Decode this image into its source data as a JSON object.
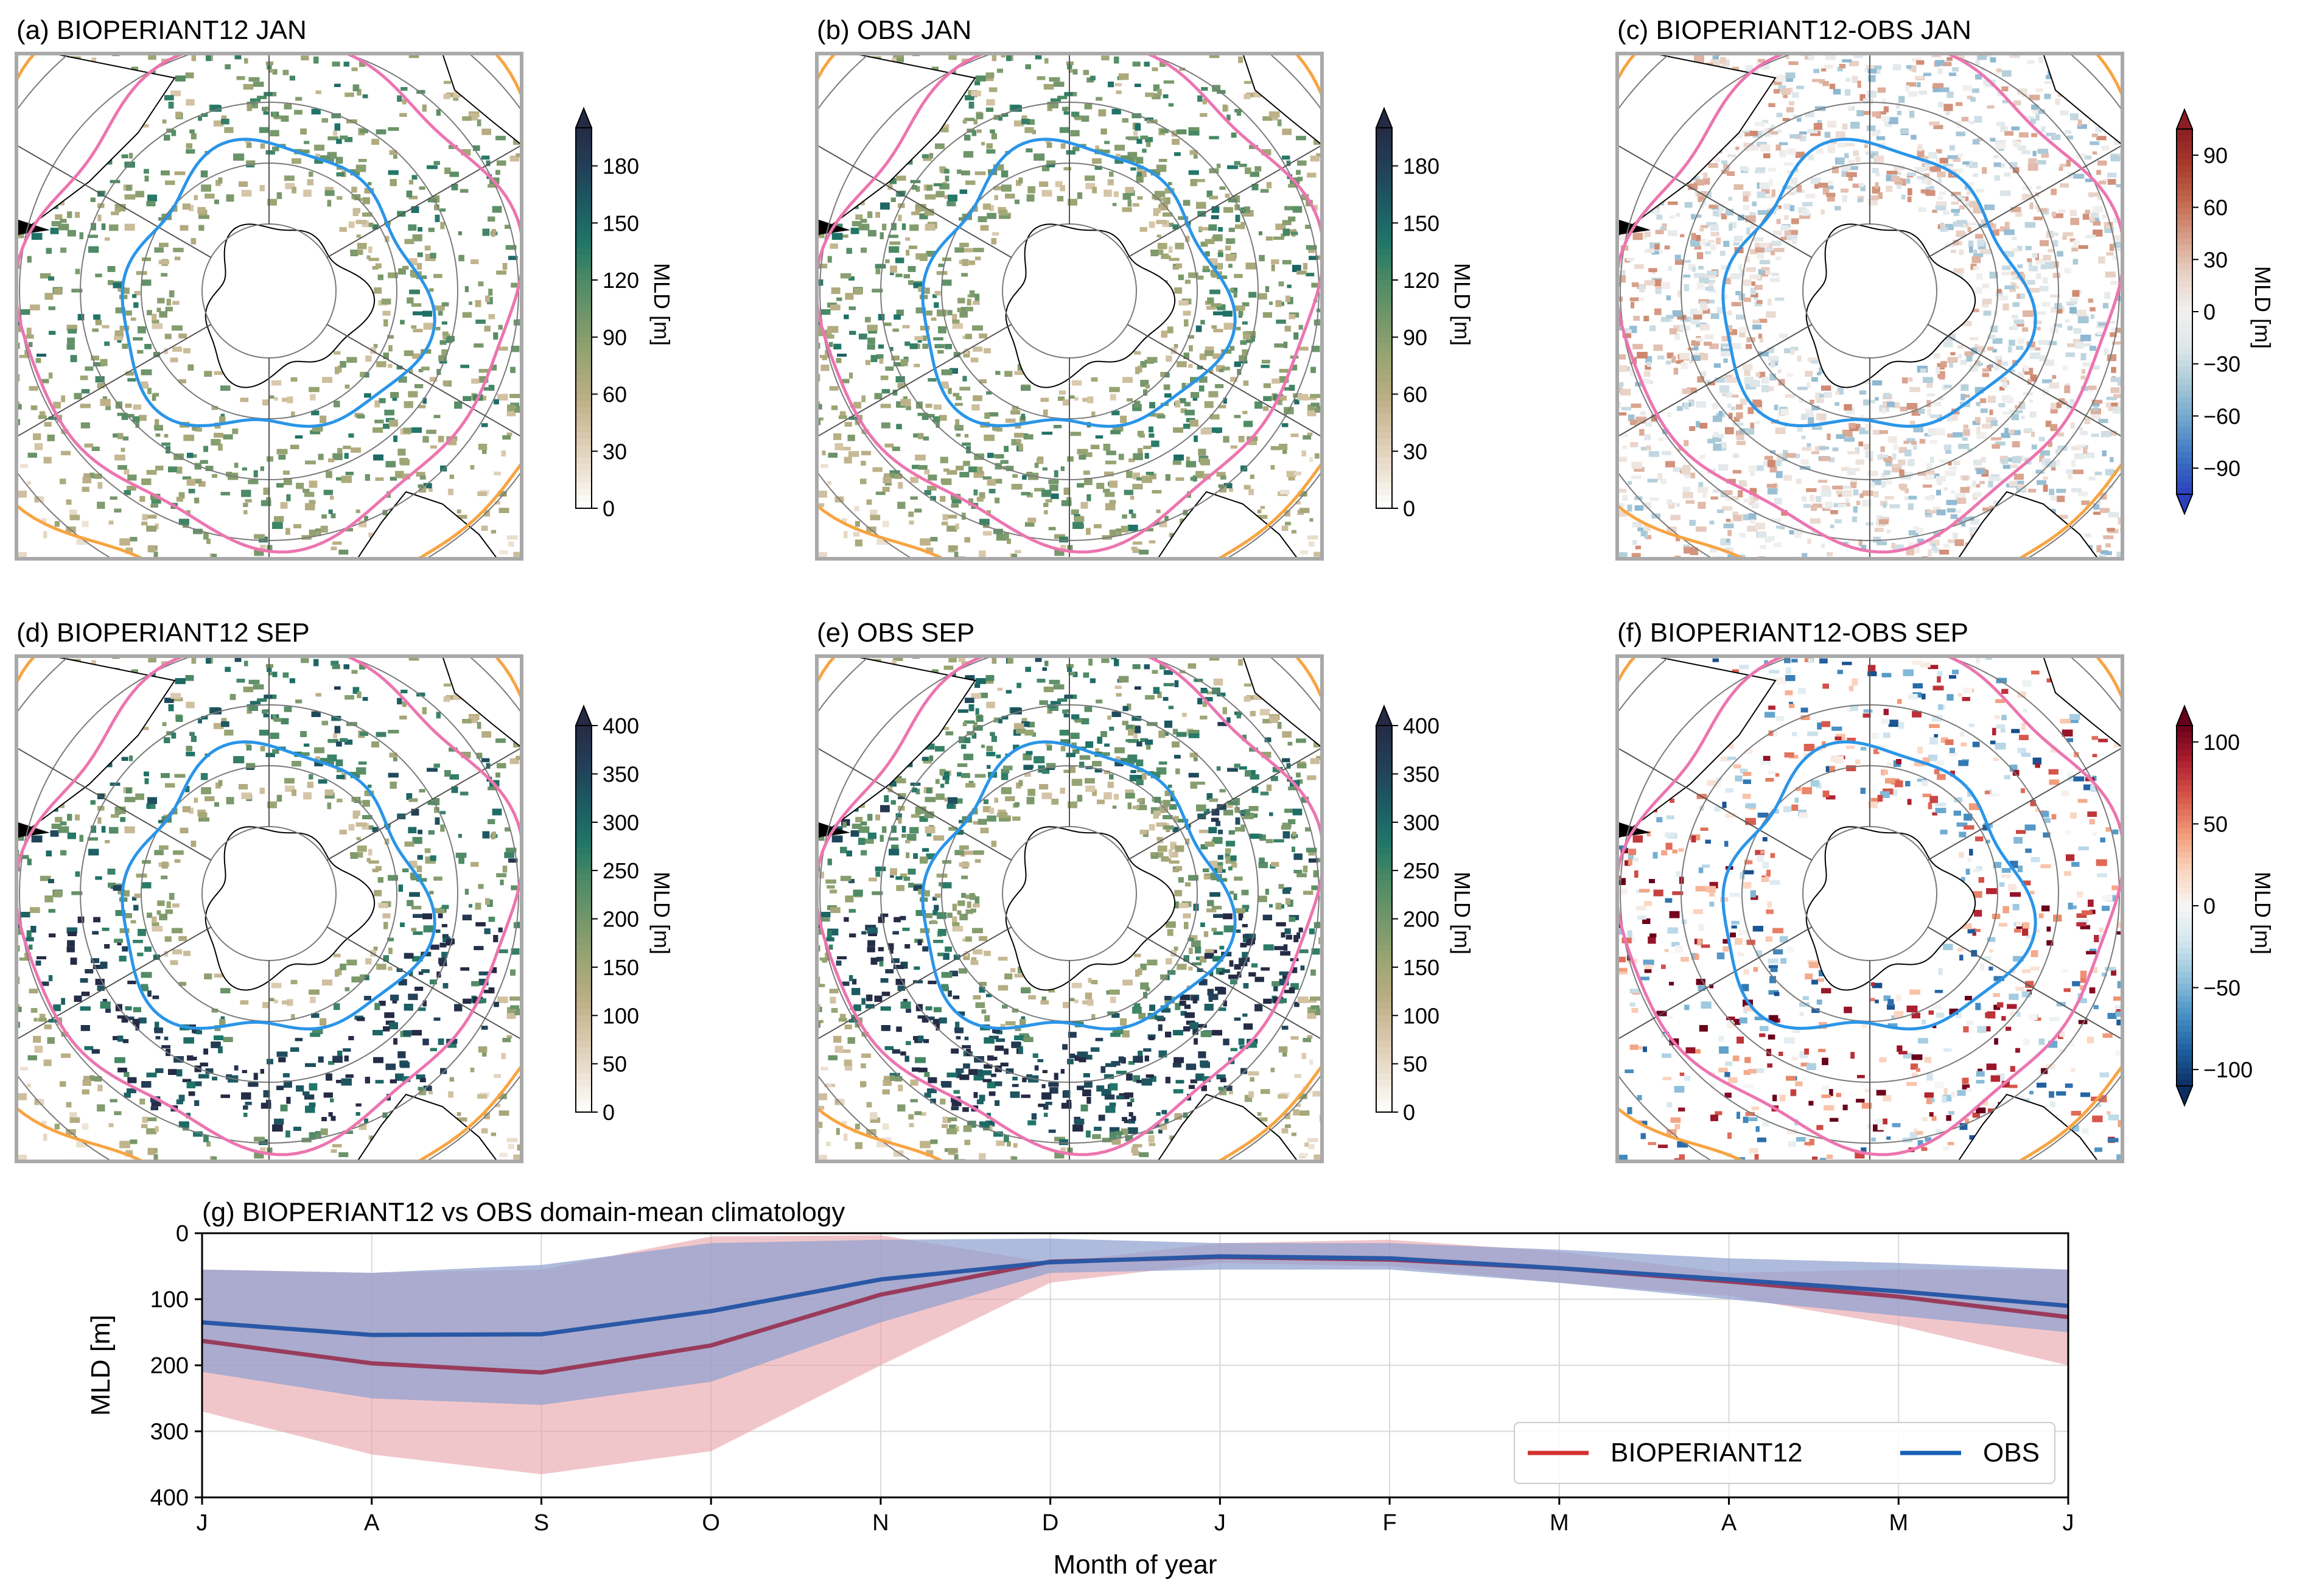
{
  "panels": [
    {
      "id": "a",
      "title": "(a) BIOPERIANT12 JAN",
      "kind": "model",
      "month": "jan"
    },
    {
      "id": "b",
      "title": "(b) OBS JAN",
      "kind": "obs",
      "month": "jan"
    },
    {
      "id": "c",
      "title": "(c) BIOPERIANT12-OBS JAN",
      "kind": "diff",
      "month": "jan"
    },
    {
      "id": "d",
      "title": "(d) BIOPERIANT12 SEP",
      "kind": "model",
      "month": "sep"
    },
    {
      "id": "e",
      "title": "(e) OBS SEP",
      "kind": "obs",
      "month": "sep"
    },
    {
      "id": "f",
      "title": "(f) BIOPERIANT12-OBS SEP",
      "kind": "diff",
      "month": "sep"
    }
  ],
  "colorbars": [
    {
      "id": "a",
      "label": "MLD [m]",
      "ticks": [
        "0",
        "30",
        "60",
        "90",
        "120",
        "150",
        "180"
      ],
      "vmin": 0,
      "vmax": 200,
      "colors": [
        "#ffffff",
        "#ece1d2",
        "#d6c5a8",
        "#b9ad83",
        "#98a472",
        "#73966a",
        "#4c8a65",
        "#1f7568",
        "#1d5a63",
        "#223f57",
        "#252b45"
      ],
      "extend": "max"
    },
    {
      "id": "b",
      "label": "MLD [m]",
      "ticks": [
        "0",
        "30",
        "60",
        "90",
        "120",
        "150",
        "180"
      ],
      "vmin": 0,
      "vmax": 200,
      "colors": [
        "#ffffff",
        "#ece1d2",
        "#d6c5a8",
        "#b9ad83",
        "#98a472",
        "#73966a",
        "#4c8a65",
        "#1f7568",
        "#1d5a63",
        "#223f57",
        "#252b45"
      ],
      "extend": "max"
    },
    {
      "id": "c",
      "label": "MLD [m]",
      "ticks": [
        "90",
        "60",
        "30",
        "0",
        "−30",
        "−60",
        "−90"
      ],
      "vmin": -105,
      "vmax": 105,
      "colors": [
        "#2c3fbf",
        "#3b73c1",
        "#6ea4cc",
        "#a7c8d6",
        "#dde6ea",
        "#f2f0ee",
        "#e9d3c8",
        "#d8a08a",
        "#c2694f",
        "#a73c2d",
        "#8a1d22"
      ],
      "extend": "both"
    },
    {
      "id": "d",
      "label": "MLD [m]",
      "ticks": [
        "0",
        "50",
        "100",
        "150",
        "200",
        "250",
        "300",
        "350",
        "400"
      ],
      "vmin": 0,
      "vmax": 400,
      "colors": [
        "#ffffff",
        "#ece1d2",
        "#d6c5a8",
        "#b9ad83",
        "#98a472",
        "#73966a",
        "#4c8a65",
        "#1f7568",
        "#1d5a63",
        "#223f57",
        "#252b45"
      ],
      "extend": "max"
    },
    {
      "id": "e",
      "label": "MLD [m]",
      "ticks": [
        "0",
        "50",
        "100",
        "150",
        "200",
        "250",
        "300",
        "350",
        "400"
      ],
      "vmin": 0,
      "vmax": 400,
      "colors": [
        "#ffffff",
        "#ece1d2",
        "#d6c5a8",
        "#b9ad83",
        "#98a472",
        "#73966a",
        "#4c8a65",
        "#1f7568",
        "#1d5a63",
        "#223f57",
        "#252b45"
      ],
      "extend": "max"
    },
    {
      "id": "f",
      "label": "MLD [m]",
      "ticks": [
        "100",
        "50",
        "0",
        "−50",
        "−100"
      ],
      "vmin": -110,
      "vmax": 110,
      "colors": [
        "#0b2e62",
        "#1f5fa0",
        "#4a92c4",
        "#93c3dc",
        "#d3e6ef",
        "#f7f6f5",
        "#fbd3bd",
        "#f19a78",
        "#d7574a",
        "#ae1f30",
        "#68001a"
      ],
      "extend": "both"
    }
  ],
  "colors": {
    "model_line": "#993b5b",
    "obs_line": "#2a58a6",
    "model_band": "#e7a0a9",
    "obs_band": "#8fa1cf",
    "legend_model": "#d2312f",
    "legend_obs": "#1760b5",
    "front_outer": "#f8a442",
    "front_mid": "#ec75b0",
    "front_inner": "#2a95e8"
  },
  "chart_data": [
    {
      "type": "heatmap",
      "title": "(a) BIOPERIANT12 JAN",
      "colorbar_label": "MLD [m]",
      "colorbar_range": [
        0,
        200
      ],
      "fronts": [
        "orange",
        "pink",
        "blue"
      ]
    },
    {
      "type": "heatmap",
      "title": "(b) OBS JAN",
      "colorbar_label": "MLD [m]",
      "colorbar_range": [
        0,
        200
      ],
      "fronts": [
        "orange",
        "pink",
        "blue"
      ]
    },
    {
      "type": "heatmap",
      "title": "(c) BIOPERIANT12-OBS JAN",
      "colorbar_label": "MLD [m]",
      "colorbar_range": [
        -105,
        105
      ],
      "fronts": [
        "orange",
        "pink",
        "blue"
      ]
    },
    {
      "type": "heatmap",
      "title": "(d) BIOPERIANT12 SEP",
      "colorbar_label": "MLD [m]",
      "colorbar_range": [
        0,
        400
      ],
      "fronts": [
        "orange",
        "pink",
        "blue"
      ]
    },
    {
      "type": "heatmap",
      "title": "(e) OBS SEP",
      "colorbar_label": "MLD [m]",
      "colorbar_range": [
        0,
        400
      ],
      "fronts": [
        "orange",
        "pink",
        "blue"
      ]
    },
    {
      "type": "heatmap",
      "title": "(f) BIOPERIANT12-OBS SEP",
      "colorbar_label": "MLD [m]",
      "colorbar_range": [
        -110,
        110
      ],
      "fronts": [
        "orange",
        "pink",
        "blue"
      ]
    },
    {
      "type": "line",
      "title": "(g) BIOPERIANT12 vs OBS domain-mean climatology",
      "xlabel": "Month of year",
      "ylabel": "MLD [m]",
      "categories": [
        "J",
        "A",
        "S",
        "O",
        "N",
        "D",
        "J",
        "F",
        "M",
        "A",
        "M",
        "J"
      ],
      "ylim": [
        400,
        0
      ],
      "yticks": [
        "0",
        "100",
        "200",
        "300",
        "400"
      ],
      "grid": true,
      "legend_position": "bottom-right",
      "series": [
        {
          "name": "BIOPERIANT12",
          "values": [
            163,
            197,
            211,
            170,
            93,
            43,
            36,
            40,
            53,
            73,
            96,
            127
          ],
          "lower": [
            55,
            60,
            55,
            5,
            3,
            45,
            15,
            10,
            28,
            60,
            55,
            55
          ],
          "upper": [
            270,
            335,
            365,
            330,
            200,
            75,
            45,
            50,
            75,
            95,
            140,
            200
          ]
        },
        {
          "name": "OBS",
          "values": [
            135,
            154,
            153,
            118,
            70,
            44,
            35,
            38,
            53,
            70,
            88,
            110
          ],
          "lower": [
            55,
            60,
            48,
            15,
            10,
            8,
            15,
            15,
            25,
            38,
            45,
            55
          ],
          "upper": [
            210,
            250,
            260,
            225,
            135,
            60,
            55,
            55,
            75,
            100,
            125,
            150
          ]
        }
      ]
    }
  ]
}
